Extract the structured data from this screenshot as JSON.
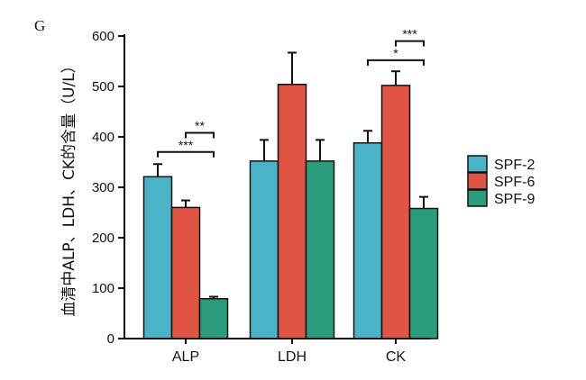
{
  "panel_label": "G",
  "chart_data": {
    "type": "bar",
    "categories": [
      "ALP",
      "LDH",
      "CK"
    ],
    "ylabel": "血清中ALP、LDH、CK的含量（U/L）",
    "ylim": [
      0,
      600
    ],
    "yticks": [
      0,
      100,
      200,
      300,
      400,
      500,
      600
    ],
    "series": [
      {
        "name": "SPF-2",
        "color": "#4bb3c8",
        "values": [
          321,
          352,
          388
        ],
        "errors": [
          25,
          42,
          24
        ]
      },
      {
        "name": "SPF-6",
        "color": "#e05444",
        "values": [
          260,
          504,
          502
        ],
        "errors": [
          14,
          63,
          28
        ]
      },
      {
        "name": "SPF-9",
        "color": "#2a9c7c",
        "values": [
          79,
          352,
          258
        ],
        "errors": [
          4,
          42,
          23
        ]
      }
    ],
    "significance": [
      {
        "category": "ALP",
        "from": "SPF-2",
        "to": "SPF-9",
        "label": "***"
      },
      {
        "category": "ALP",
        "from": "SPF-6",
        "to": "SPF-9",
        "label": "**"
      },
      {
        "category": "CK",
        "from": "SPF-2",
        "to": "SPF-9",
        "label": "*"
      },
      {
        "category": "CK",
        "from": "SPF-6",
        "to": "SPF-9",
        "label": "***"
      }
    ],
    "legend": "right"
  }
}
